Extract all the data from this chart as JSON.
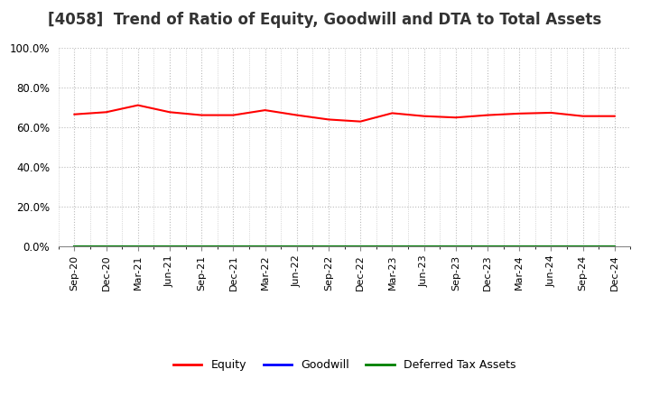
{
  "title": "[4058]  Trend of Ratio of Equity, Goodwill and DTA to Total Assets",
  "x_labels": [
    "Sep-20",
    "Dec-20",
    "Mar-21",
    "Jun-21",
    "Sep-21",
    "Dec-21",
    "Mar-22",
    "Jun-22",
    "Sep-22",
    "Dec-22",
    "Mar-23",
    "Jun-23",
    "Sep-23",
    "Dec-23",
    "Mar-24",
    "Jun-24",
    "Sep-24",
    "Dec-24"
  ],
  "equity": [
    0.664,
    0.675,
    0.71,
    0.675,
    0.66,
    0.66,
    0.685,
    0.66,
    0.638,
    0.628,
    0.67,
    0.655,
    0.648,
    0.66,
    0.668,
    0.672,
    0.655,
    0.655
  ],
  "goodwill": [
    0.0,
    0.0,
    0.0,
    0.0,
    0.0,
    0.0,
    0.0,
    0.0,
    0.0,
    0.0,
    0.0,
    0.0,
    0.0,
    0.0,
    0.0,
    0.0,
    0.0,
    0.0
  ],
  "deferred_tax_assets": [
    0.0,
    0.0,
    0.0,
    0.0,
    0.0,
    0.0,
    0.0,
    0.0,
    0.0,
    0.0,
    0.0,
    0.0,
    0.0,
    0.0,
    0.0,
    0.0,
    0.0,
    0.0
  ],
  "equity_color": "#FF0000",
  "goodwill_color": "#0000FF",
  "dta_color": "#008000",
  "ylim": [
    0.0,
    1.0
  ],
  "yticks": [
    0.0,
    0.2,
    0.4,
    0.6,
    0.8,
    1.0
  ],
  "background_color": "#FFFFFF",
  "plot_bg_color": "#FFFFFF",
  "grid_color": "#BBBBBB",
  "title_fontsize": 12,
  "legend_labels": [
    "Equity",
    "Goodwill",
    "Deferred Tax Assets"
  ]
}
